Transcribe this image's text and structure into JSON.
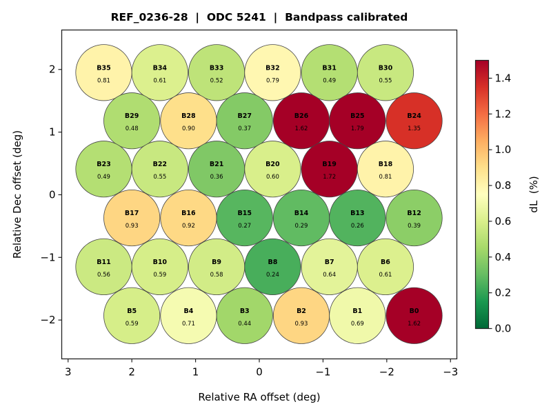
{
  "chart_data": {
    "type": "scatter",
    "title": "REF_0236-28  |  ODC 5241  |  Bandpass calibrated",
    "xlabel": "Relative RA offset (deg)",
    "ylabel": "Relative Dec offset (deg)",
    "xlim": [
      3.1,
      -3.1
    ],
    "ylim": [
      -2.62,
      2.63
    ],
    "x_inverted": true,
    "xticks": [
      3,
      2,
      1,
      0,
      -1,
      -2,
      -3
    ],
    "xtick_labels": [
      "3",
      "2",
      "1",
      "0",
      "−1",
      "−2",
      "−3"
    ],
    "yticks": [
      2,
      1,
      0,
      -1,
      -2
    ],
    "ytick_labels": [
      "2",
      "1",
      "0",
      "−1",
      "−2"
    ],
    "grid": false,
    "beam_radius_deg": 0.44,
    "colorbar": {
      "label": "dL  (%)",
      "colormap": "RdYlGn_r",
      "range": [
        0.0,
        1.5
      ],
      "ticks": [
        0.0,
        0.2,
        0.4,
        0.6,
        0.8,
        1.0,
        1.2,
        1.4
      ],
      "tick_labels": [
        "0.0",
        "0.2",
        "0.4",
        "0.6",
        "0.8",
        "1.0",
        "1.2",
        "1.4"
      ],
      "placement": "right"
    },
    "beams": [
      {
        "name": "B35",
        "ra": 2.44,
        "dec": 1.95,
        "value": 0.81,
        "label": "0.81"
      },
      {
        "name": "B34",
        "ra": 1.56,
        "dec": 1.95,
        "value": 0.61,
        "label": "0.61"
      },
      {
        "name": "B33",
        "ra": 0.67,
        "dec": 1.95,
        "value": 0.52,
        "label": "0.52"
      },
      {
        "name": "B32",
        "ra": -0.21,
        "dec": 1.95,
        "value": 0.79,
        "label": "0.79"
      },
      {
        "name": "B31",
        "ra": -1.1,
        "dec": 1.95,
        "value": 0.49,
        "label": "0.49"
      },
      {
        "name": "B30",
        "ra": -1.98,
        "dec": 1.95,
        "value": 0.55,
        "label": "0.55"
      },
      {
        "name": "B29",
        "ra": 2.0,
        "dec": 1.18,
        "value": 0.48,
        "label": "0.48"
      },
      {
        "name": "B28",
        "ra": 1.11,
        "dec": 1.18,
        "value": 0.9,
        "label": "0.90"
      },
      {
        "name": "B27",
        "ra": 0.23,
        "dec": 1.18,
        "value": 0.37,
        "label": "0.37"
      },
      {
        "name": "B26",
        "ra": -0.66,
        "dec": 1.18,
        "value": 1.62,
        "label": "1.62"
      },
      {
        "name": "B25",
        "ra": -1.54,
        "dec": 1.18,
        "value": 1.79,
        "label": "1.79"
      },
      {
        "name": "B24",
        "ra": -2.43,
        "dec": 1.18,
        "value": 1.35,
        "label": "1.35"
      },
      {
        "name": "B23",
        "ra": 2.44,
        "dec": 0.41,
        "value": 0.49,
        "label": "0.49"
      },
      {
        "name": "B22",
        "ra": 1.56,
        "dec": 0.41,
        "value": 0.55,
        "label": "0.55"
      },
      {
        "name": "B21",
        "ra": 0.67,
        "dec": 0.41,
        "value": 0.36,
        "label": "0.36"
      },
      {
        "name": "B20",
        "ra": -0.21,
        "dec": 0.41,
        "value": 0.6,
        "label": "0.60"
      },
      {
        "name": "B19",
        "ra": -1.1,
        "dec": 0.41,
        "value": 1.72,
        "label": "1.72"
      },
      {
        "name": "B18",
        "ra": -1.98,
        "dec": 0.41,
        "value": 0.81,
        "label": "0.81"
      },
      {
        "name": "B17",
        "ra": 2.0,
        "dec": -0.37,
        "value": 0.93,
        "label": "0.93"
      },
      {
        "name": "B16",
        "ra": 1.11,
        "dec": -0.37,
        "value": 0.92,
        "label": "0.92"
      },
      {
        "name": "B15",
        "ra": 0.23,
        "dec": -0.37,
        "value": 0.27,
        "label": "0.27"
      },
      {
        "name": "B14",
        "ra": -0.66,
        "dec": -0.37,
        "value": 0.29,
        "label": "0.29"
      },
      {
        "name": "B13",
        "ra": -1.54,
        "dec": -0.37,
        "value": 0.26,
        "label": "0.26"
      },
      {
        "name": "B12",
        "ra": -2.43,
        "dec": -0.37,
        "value": 0.39,
        "label": "0.39"
      },
      {
        "name": "B11",
        "ra": 2.44,
        "dec": -1.15,
        "value": 0.56,
        "label": "0.56"
      },
      {
        "name": "B10",
        "ra": 1.56,
        "dec": -1.15,
        "value": 0.59,
        "label": "0.59"
      },
      {
        "name": "B9",
        "ra": 0.67,
        "dec": -1.15,
        "value": 0.58,
        "label": "0.58"
      },
      {
        "name": "B8",
        "ra": -0.21,
        "dec": -1.15,
        "value": 0.24,
        "label": "0.24"
      },
      {
        "name": "B7",
        "ra": -1.1,
        "dec": -1.15,
        "value": 0.64,
        "label": "0.64"
      },
      {
        "name": "B6",
        "ra": -1.98,
        "dec": -1.15,
        "value": 0.61,
        "label": "0.61"
      },
      {
        "name": "B5",
        "ra": 2.0,
        "dec": -1.93,
        "value": 0.59,
        "label": "0.59"
      },
      {
        "name": "B4",
        "ra": 1.11,
        "dec": -1.93,
        "value": 0.71,
        "label": "0.71"
      },
      {
        "name": "B3",
        "ra": 0.23,
        "dec": -1.93,
        "value": 0.44,
        "label": "0.44"
      },
      {
        "name": "B2",
        "ra": -0.66,
        "dec": -1.93,
        "value": 0.93,
        "label": "0.93"
      },
      {
        "name": "B1",
        "ra": -1.54,
        "dec": -1.93,
        "value": 0.69,
        "label": "0.69"
      },
      {
        "name": "B0",
        "ra": -2.43,
        "dec": -1.93,
        "value": 1.62,
        "label": "1.62"
      }
    ]
  }
}
